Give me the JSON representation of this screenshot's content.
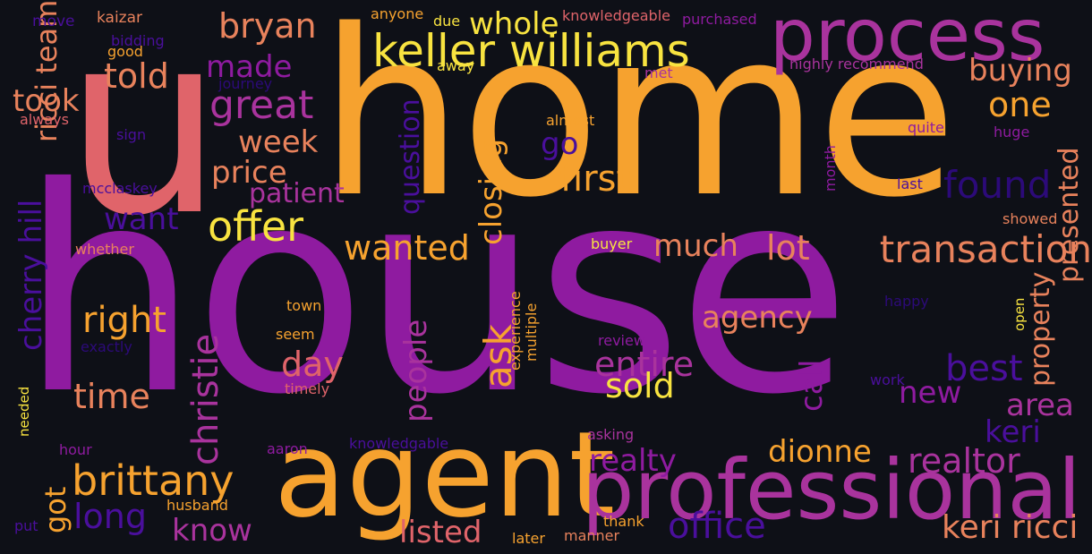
{
  "palette": {
    "background": "#0e1017",
    "orange": "#f6a22f",
    "purple": "#8f1ba0",
    "magenta": "#a9339d",
    "coral": "#e0646a",
    "indigo": "#4a0f9c",
    "deep_indigo": "#2c0a79",
    "yellow": "#f8e340",
    "salmon": "#e8825c"
  },
  "words": {
    "w1": "house",
    "w2": "home",
    "w3": "u",
    "w4": "agent",
    "w5": "professional",
    "w6": "process",
    "w7": "keller williams",
    "w8": "bryan",
    "w9": "brittany",
    "w10": "offer",
    "w11": "great",
    "w12": "made",
    "w13": "told",
    "w14": "whole",
    "w15": "buying",
    "w16": "one",
    "w17": "found",
    "w18": "transaction",
    "w19": "lot",
    "w20": "wanted",
    "w21": "week",
    "w22": "price",
    "w23": "patient",
    "w24": "want",
    "w25": "right",
    "w26": "day",
    "w27": "time",
    "w28": "long",
    "w29": "know",
    "w30": "listed",
    "w31": "office",
    "w32": "keri ricci",
    "w33": "realtor",
    "w34": "dionne",
    "w35": "realty",
    "w36": "entire",
    "w37": "sold",
    "w38": "agency",
    "w39": "much",
    "w40": "best",
    "w41": "new",
    "w42": "area",
    "w43": "keri",
    "w44": "first",
    "w45": "go",
    "w46": "took",
    "w47": "ask",
    "w48": "closing",
    "w49": "question",
    "w50": "people",
    "w51": "christie",
    "w52": "cherry hill",
    "w53": "ricci team",
    "w54": "got",
    "w55": "call",
    "w56": "property",
    "w57": "presented",
    "w58": "month",
    "w59": "experience",
    "w60": "multiple",
    "w61": "needed",
    "w62": "open",
    "w63": "kaizar",
    "w64": "move",
    "w65": "bidding",
    "w66": "good",
    "w67": "journey",
    "w68": "always",
    "w69": "sign",
    "w70": "mcclaskey",
    "w71": "whether",
    "w72": "town",
    "w73": "seem",
    "w74": "exactly",
    "w75": "timely",
    "w76": "hour",
    "w77": "aaron",
    "w78": "knowledgable",
    "w79": "husband",
    "w80": "put",
    "w81": "anyone",
    "w82": "due",
    "w83": "away",
    "w84": "knowledgeable",
    "w85": "purchased",
    "w86": "met",
    "w87": "highly recommend",
    "w88": "almost",
    "w89": "quite",
    "w90": "huge",
    "w91": "last",
    "w92": "showed",
    "w93": "buyer",
    "w94": "happy",
    "w95": "review",
    "w96": "work",
    "w97": "asking",
    "w98": "thank",
    "w99": "later",
    "w100": "manner"
  }
}
